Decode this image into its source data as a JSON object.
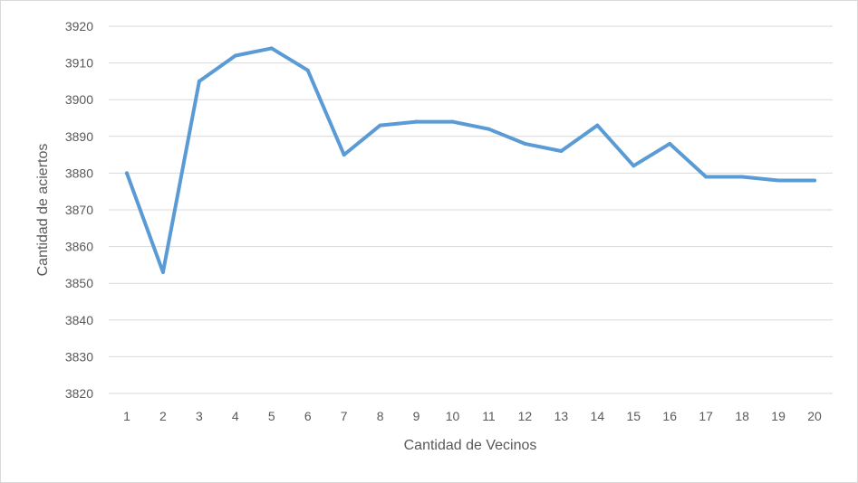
{
  "chart_data": {
    "type": "line",
    "title": "",
    "xlabel": "Cantidad de Vecinos",
    "ylabel": "Cantidad de aciertos",
    "categories": [
      "1",
      "2",
      "3",
      "4",
      "5",
      "6",
      "7",
      "8",
      "9",
      "10",
      "11",
      "12",
      "13",
      "14",
      "15",
      "16",
      "17",
      "18",
      "19",
      "20"
    ],
    "series": [
      {
        "values": [
          3880,
          3853,
          3905,
          3912,
          3914,
          3908,
          3885,
          3893,
          3894,
          3894,
          3892,
          3888,
          3886,
          3893,
          3882,
          3888,
          3879,
          3879,
          3878,
          3878
        ],
        "color": "#5b9bd5"
      }
    ],
    "ylim": [
      3820,
      3920
    ],
    "yticks": [
      3820,
      3830,
      3840,
      3850,
      3860,
      3870,
      3880,
      3890,
      3900,
      3910,
      3920
    ],
    "grid": true,
    "legend": "none",
    "colors": {
      "grid": "#d9d9d9",
      "text": "#595959",
      "line": "#5b9bd5"
    }
  }
}
